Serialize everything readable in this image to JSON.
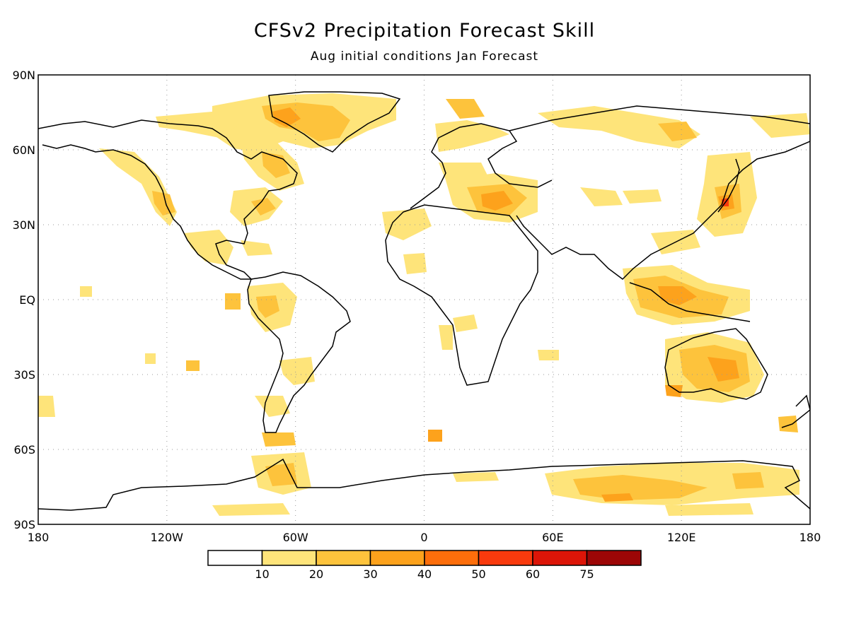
{
  "title": "CFSv2 Precipitation Forecast Skill",
  "subtitle": "Aug initial conditions  Jan Forecast",
  "map": {
    "lat_labels": [
      "90N",
      "60N",
      "30N",
      "EQ",
      "30S",
      "60S",
      "90S"
    ],
    "lon_labels": [
      "180",
      "120W",
      "60W",
      "0",
      "60E",
      "120E",
      "180"
    ],
    "lat_values": [
      90,
      60,
      30,
      0,
      -30,
      -60,
      -90
    ],
    "lon_values": [
      -180,
      -120,
      -60,
      0,
      60,
      120,
      180
    ],
    "gridlines": "dotted",
    "frame": "box"
  },
  "legend": {
    "labels": [
      "10",
      "20",
      "30",
      "40",
      "50",
      "60",
      "75"
    ],
    "colors": [
      "#ffffff",
      "#fee47a",
      "#fdc33c",
      "#fda21c",
      "#fd6e0b",
      "#f93a0d",
      "#dc1508",
      "#9c0606"
    ]
  },
  "skill_regions": [
    {
      "name": "greenland",
      "lon": -38,
      "lat": 72,
      "level": 2
    },
    {
      "name": "canada-arctic",
      "lon": -80,
      "lat": 70,
      "level": 1
    },
    {
      "name": "baffin",
      "lon": -65,
      "lat": 62,
      "level": 2
    },
    {
      "name": "us-east",
      "lon": -70,
      "lat": 42,
      "level": 1
    },
    {
      "name": "us-west",
      "lon": -120,
      "lat": 40,
      "level": 2
    },
    {
      "name": "mexico",
      "lon": -100,
      "lat": 22,
      "level": 1
    },
    {
      "name": "amazon",
      "lon": -60,
      "lat": -5,
      "level": 1
    },
    {
      "name": "patagonia",
      "lon": -68,
      "lat": -53,
      "level": 2
    },
    {
      "name": "scandinavia",
      "lon": 20,
      "lat": 65,
      "level": 1
    },
    {
      "name": "turkey",
      "lon": 35,
      "lat": 38,
      "level": 3
    },
    {
      "name": "japan",
      "lon": 138,
      "lat": 36,
      "level": 3
    },
    {
      "name": "maritime-continent",
      "lon": 118,
      "lat": -3,
      "level": 2
    },
    {
      "name": "australia",
      "lon": 130,
      "lat": -25,
      "level": 2
    },
    {
      "name": "antarctica-east",
      "lon": 90,
      "lat": -75,
      "level": 2
    }
  ]
}
